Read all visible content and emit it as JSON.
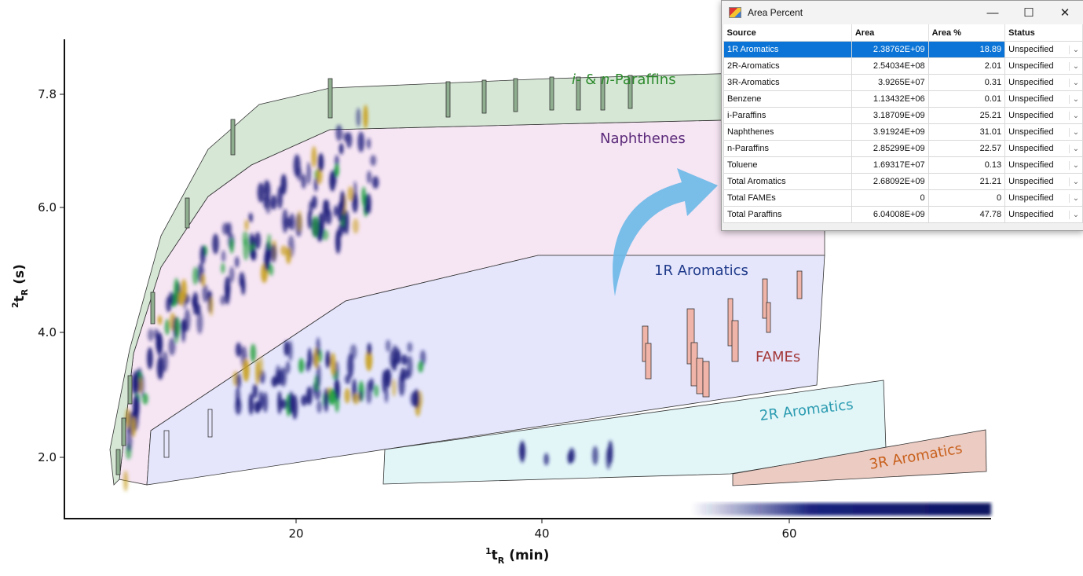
{
  "chart_data": {
    "type": "heatmap",
    "xlabel": {
      "sup": "1",
      "main": "t",
      "sub": "R",
      "rest": " (min)"
    },
    "ylabel": {
      "sup": "2",
      "main": "t",
      "sub": "R",
      "rest": " (s)"
    },
    "x_ticks": [
      "20",
      "40",
      "60"
    ],
    "y_ticks": [
      "7.8",
      "6.0",
      "4.0",
      "2.0"
    ],
    "regions": {
      "paraffins": {
        "prefix_i": "i-",
        "amp": " & ",
        "prefix_n": "n-",
        "label": "Paraffins",
        "color": "#2e8b2e"
      },
      "naphthenes": {
        "label": "Naphthenes",
        "color": "#5b2a7a"
      },
      "aromatics_1r": {
        "label": "1R Aromatics",
        "color": "#1f3a8a"
      },
      "fames": {
        "label": "FAMEs",
        "color": "#a33a3a"
      },
      "aromatics_2r": {
        "label": "2R Aromatics",
        "color": "#2a9bb0"
      },
      "aromatics_3r": {
        "label": "3R Aromatics",
        "color": "#c8601c"
      }
    }
  },
  "window": {
    "title": "Area Percent",
    "minimize": "—",
    "maximize": "☐",
    "close": "✕",
    "columns": [
      "Source",
      "Area",
      "Area %",
      "Status"
    ],
    "rows": [
      {
        "source": "1R Aromatics",
        "area": "2.38762E+09",
        "pct": "18.89",
        "status": "Unspecified",
        "selected": true
      },
      {
        "source": "2R-Aromatics",
        "area": "2.54034E+08",
        "pct": "2.01",
        "status": "Unspecified"
      },
      {
        "source": "3R-Aromatics",
        "area": "3.9265E+07",
        "pct": "0.31",
        "status": "Unspecified"
      },
      {
        "source": "Benzene",
        "area": "1.13432E+06",
        "pct": "0.01",
        "status": "Unspecified"
      },
      {
        "source": "i-Paraffins",
        "area": "3.18709E+09",
        "pct": "25.21",
        "status": "Unspecified"
      },
      {
        "source": "Naphthenes",
        "area": "3.91924E+09",
        "pct": "31.01",
        "status": "Unspecified"
      },
      {
        "source": "n-Paraffins",
        "area": "2.85299E+09",
        "pct": "22.57",
        "status": "Unspecified"
      },
      {
        "source": "Toluene",
        "area": "1.69317E+07",
        "pct": "0.13",
        "status": "Unspecified"
      },
      {
        "source": "Total Aromatics",
        "area": "2.68092E+09",
        "pct": "21.21",
        "status": "Unspecified"
      },
      {
        "source": "Total FAMEs",
        "area": "0",
        "pct": "0",
        "status": "Unspecified"
      },
      {
        "source": "Total Paraffins",
        "area": "6.04008E+09",
        "pct": "47.78",
        "status": "Unspecified"
      }
    ]
  }
}
